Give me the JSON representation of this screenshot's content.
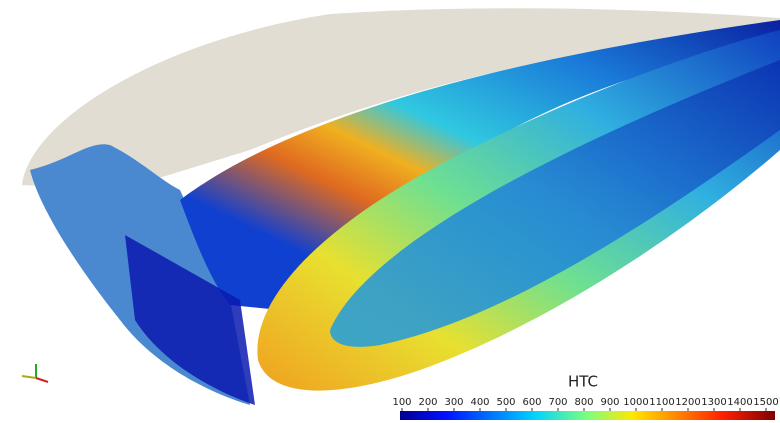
{
  "colorbar": {
    "title": "HTC",
    "lim": [
      100,
      1500
    ],
    "ticks": [
      100,
      200,
      300,
      400,
      500,
      600,
      700,
      800,
      900,
      1000,
      1100,
      1200,
      1300,
      1400,
      1500
    ]
  }
}
